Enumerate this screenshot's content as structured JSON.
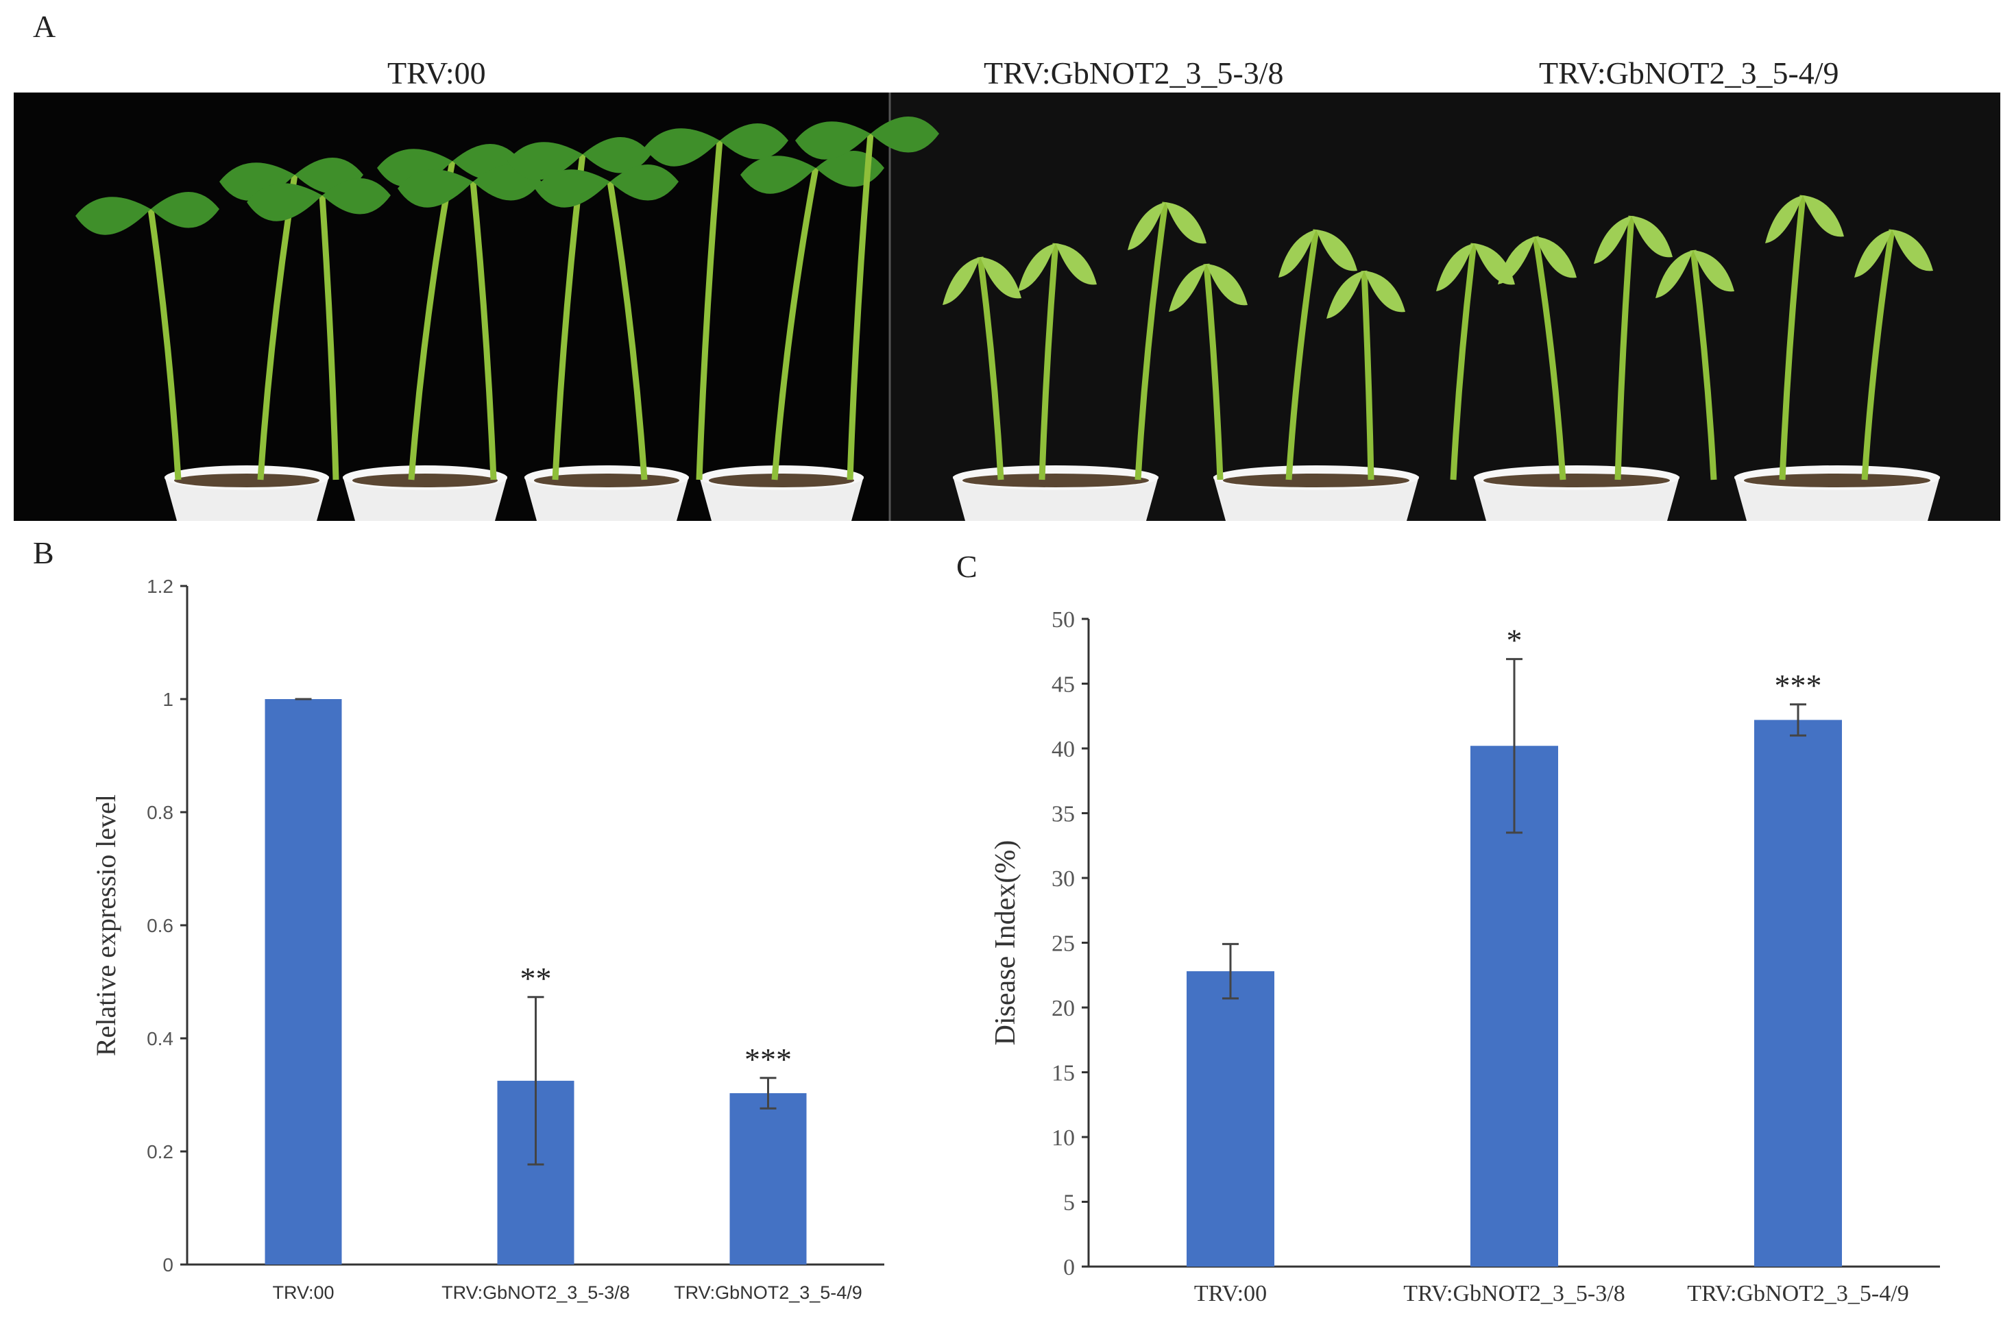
{
  "panel_a": {
    "letter": "A",
    "labels": [
      "TRV:00",
      "TRV:GbNOT2_3_5-3/8",
      "TRV:GbNOT2_3_5-4/9"
    ]
  },
  "colors": {
    "bar": "#4472C4",
    "axis": "#333333",
    "photo_bg": "#0a0a0a",
    "leaf": "#3f8f2a",
    "wilt_leaf": "#9fcf55"
  },
  "chart_data": [
    {
      "panel": "B",
      "type": "bar",
      "categories": [
        "TRV:00",
        "TRV:GbNOT2_3_5-3/8",
        "TRV:GbNOT2_3_5-4/9"
      ],
      "values": [
        1.0,
        0.325,
        0.303
      ],
      "errors": [
        0.0,
        0.148,
        0.027
      ],
      "annotations": [
        "",
        "**",
        "***"
      ],
      "ylabel": "Relative expressio level",
      "xlabel": "",
      "ylim": [
        0,
        1.2
      ],
      "yticks": [
        "0",
        "0.2",
        "0.4",
        "0.6",
        "0.8",
        "1",
        "1.2"
      ],
      "grid": false,
      "legend": "none"
    },
    {
      "panel": "C",
      "type": "bar",
      "categories": [
        "TRV:00",
        "TRV:GbNOT2_3_5-3/8",
        "TRV:GbNOT2_3_5-4/9"
      ],
      "values": [
        22.8,
        40.2,
        42.2
      ],
      "errors": [
        2.1,
        6.7,
        1.2
      ],
      "annotations": [
        "",
        "*",
        "***"
      ],
      "ylabel": "Disease Index(%)",
      "xlabel": "",
      "ylim": [
        0,
        50
      ],
      "yticks": [
        "0",
        "5",
        "10",
        "15",
        "20",
        "25",
        "30",
        "35",
        "40",
        "45",
        "50"
      ],
      "grid": false,
      "legend": "none"
    }
  ]
}
